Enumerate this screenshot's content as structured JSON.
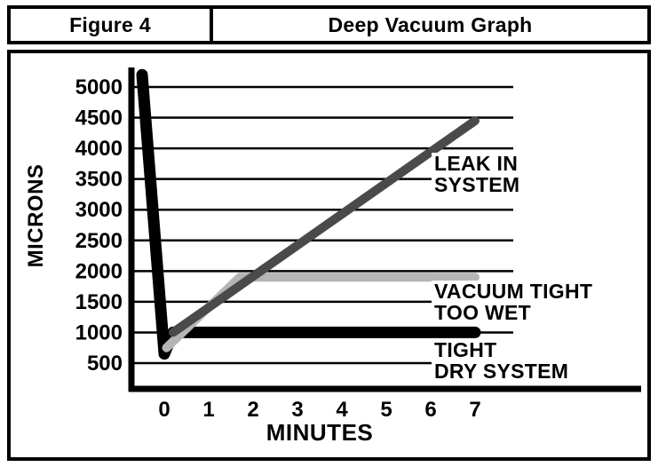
{
  "header": {
    "figure_label": "Figure 4",
    "title": "Deep Vacuum Graph"
  },
  "chart_data": {
    "type": "line",
    "title": "Deep Vacuum Graph",
    "xlabel": "MINUTES",
    "ylabel": "MICRONS",
    "x_ticks": [
      0,
      1,
      2,
      3,
      4,
      5,
      6,
      7
    ],
    "y_ticks": [
      500,
      1000,
      1500,
      2000,
      2500,
      3000,
      3500,
      4000,
      4500,
      5000
    ],
    "xlim": [
      -0.75,
      7.9
    ],
    "ylim": [
      0,
      5400
    ],
    "grid": "horizontal",
    "legend_position": "labels-next-to-lines",
    "axis_color": "#000000",
    "series": [
      {
        "name": "TIGHT DRY SYSTEM",
        "label_lines": [
          "TIGHT",
          "DRY SYSTEM"
        ],
        "color": "#000000",
        "stroke_width": 13,
        "points": [
          [
            -0.5,
            5200
          ],
          [
            0,
            650
          ],
          [
            0.2,
            1000
          ],
          [
            7,
            1000
          ]
        ]
      },
      {
        "name": "VACUUM TIGHT TOO WET",
        "label_lines": [
          "VACUUM TIGHT",
          "TOO WET"
        ],
        "color": "#b5b5b5",
        "stroke_width": 10,
        "points": [
          [
            0.05,
            750
          ],
          [
            1.7,
            1900
          ],
          [
            7,
            1900
          ]
        ]
      },
      {
        "name": "LEAK IN SYSTEM",
        "label_lines": [
          "LEAK IN",
          "SYSTEM"
        ],
        "color": "#4a4a4a",
        "stroke_width": 10,
        "points": [
          [
            0.2,
            1000
          ],
          [
            7,
            4450
          ]
        ]
      }
    ]
  }
}
